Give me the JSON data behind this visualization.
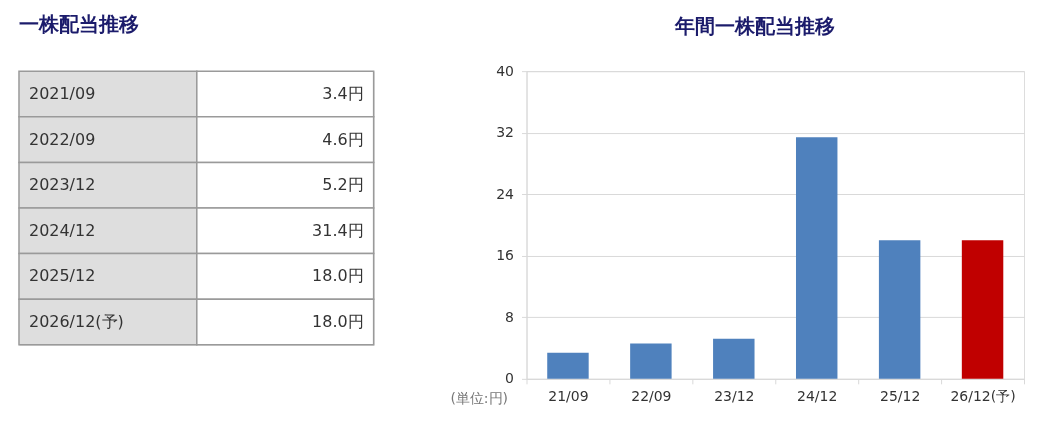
{
  "chart_data": [
    {
      "type": "other",
      "title": "一株配当推移",
      "categories": [
        "2021/09",
        "2022/09",
        "2023/12",
        "2024/12",
        "2025/12",
        "2026/12(予)"
      ],
      "value_labels": [
        "3.4円",
        "4.6円",
        "5.2円",
        "31.4円",
        "18.0円",
        "18.0円"
      ]
    },
    {
      "type": "bar",
      "title": "年間一株配当推移",
      "ylabel": "(単位:円)",
      "categories": [
        "21/09",
        "22/09",
        "23/12",
        "24/12",
        "25/12",
        "26/12(予)"
      ],
      "values": [
        3.4,
        4.6,
        5.2,
        31.4,
        18.0,
        18.0
      ],
      "colors": [
        "#4f81bd",
        "#4f81bd",
        "#4f81bd",
        "#4f81bd",
        "#4f81bd",
        "#c00000"
      ],
      "ylim": [
        0,
        40
      ],
      "yticks": [
        0,
        8,
        16,
        24,
        32,
        40
      ],
      "grid": "y"
    }
  ]
}
